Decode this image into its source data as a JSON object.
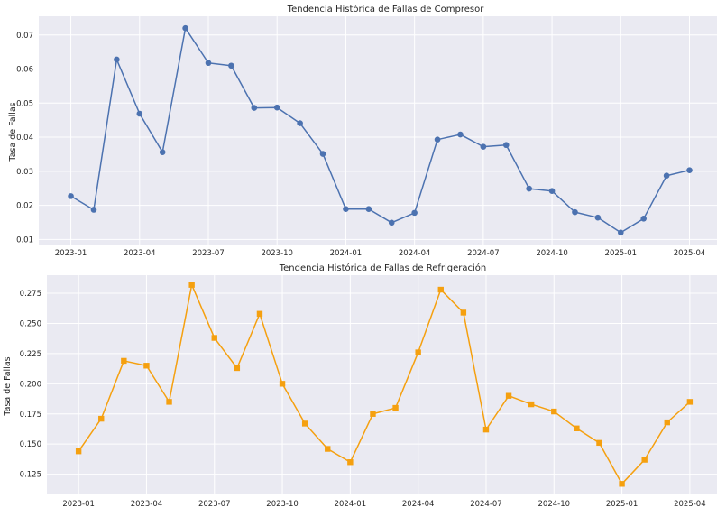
{
  "chart_data": [
    {
      "type": "line",
      "title": "Tendencia Histórica de Fallas de Compresor",
      "xlabel": "",
      "ylabel": "Tasa de Fallas",
      "marker": "circle",
      "color": "#4c72b0",
      "x": [
        "2023-01",
        "2023-02",
        "2023-03",
        "2023-04",
        "2023-05",
        "2023-06",
        "2023-07",
        "2023-08",
        "2023-09",
        "2023-10",
        "2023-11",
        "2023-12",
        "2024-01",
        "2024-02",
        "2024-03",
        "2024-04",
        "2024-05",
        "2024-06",
        "2024-07",
        "2024-08",
        "2024-09",
        "2024-10",
        "2024-11",
        "2024-12",
        "2025-01",
        "2025-02",
        "2025-03",
        "2025-04"
      ],
      "values": [
        0.0227,
        0.0187,
        0.0628,
        0.0469,
        0.0356,
        0.072,
        0.0618,
        0.061,
        0.0486,
        0.0487,
        0.0441,
        0.0351,
        0.0189,
        0.0189,
        0.0149,
        0.0178,
        0.0393,
        0.0408,
        0.0372,
        0.0377,
        0.0249,
        0.0242,
        0.018,
        0.0164,
        0.012,
        0.0161,
        0.0287,
        0.0303
      ],
      "ylim": [
        0.0085,
        0.0755
      ],
      "yticks": [
        "0.01",
        "0.02",
        "0.03",
        "0.04",
        "0.05",
        "0.06",
        "0.07"
      ],
      "xticks": [
        "2023-01",
        "2023-04",
        "2023-07",
        "2023-10",
        "2024-01",
        "2024-04",
        "2024-07",
        "2024-10",
        "2025-01",
        "2025-04"
      ],
      "grid": true
    },
    {
      "type": "line",
      "title": "Tendencia Histórica de Fallas de Refrigeración",
      "xlabel": "",
      "ylabel": "Tasa de Fallas",
      "marker": "square",
      "color": "#f5a00f",
      "x": [
        "2023-01",
        "2023-02",
        "2023-03",
        "2023-04",
        "2023-05",
        "2023-06",
        "2023-07",
        "2023-08",
        "2023-09",
        "2023-10",
        "2023-11",
        "2023-12",
        "2024-01",
        "2024-02",
        "2024-03",
        "2024-04",
        "2024-05",
        "2024-06",
        "2024-07",
        "2024-08",
        "2024-09",
        "2024-10",
        "2024-11",
        "2024-12",
        "2025-01",
        "2025-02",
        "2025-03",
        "2025-04"
      ],
      "values": [
        0.144,
        0.171,
        0.219,
        0.215,
        0.185,
        0.282,
        0.238,
        0.213,
        0.258,
        0.2,
        0.167,
        0.146,
        0.135,
        0.175,
        0.18,
        0.226,
        0.278,
        0.259,
        0.162,
        0.19,
        0.183,
        0.177,
        0.163,
        0.151,
        0.117,
        0.137,
        0.168,
        0.185
      ],
      "ylim": [
        0.109,
        0.29
      ],
      "yticks": [
        "0.125",
        "0.150",
        "0.175",
        "0.200",
        "0.225",
        "0.250",
        "0.275"
      ],
      "xticks": [
        "2023-01",
        "2023-04",
        "2023-07",
        "2023-10",
        "2024-01",
        "2024-04",
        "2024-07",
        "2024-10",
        "2025-01",
        "2025-04"
      ],
      "grid": true
    }
  ]
}
